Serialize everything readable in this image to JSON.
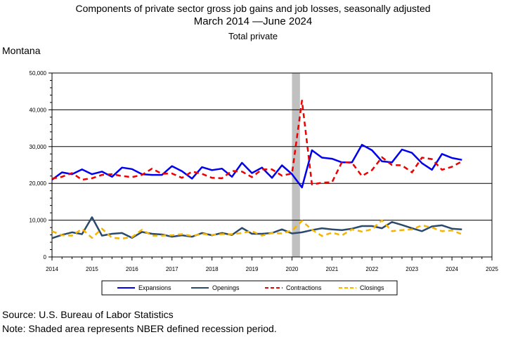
{
  "chart_data": {
    "type": "line",
    "title": "Components of private sector gross job gains and job losses, seasonally adjusted",
    "subtitle_range": {
      "start": "March 2014",
      "separator": "—",
      "end": "June 2024"
    },
    "subtitle2": "Total private",
    "region": "Montana",
    "xlim": [
      2014,
      2025
    ],
    "ylim": [
      0,
      50000
    ],
    "x_ticks": [
      "2014",
      "2015",
      "2016",
      "2017",
      "2018",
      "2019",
      "2020",
      "2021",
      "2022",
      "2023",
      "2024",
      "2025"
    ],
    "y_ticks": [
      "0",
      "10,000",
      "20,000",
      "30,000",
      "40,000",
      "50,000"
    ],
    "recession": {
      "start": 2020.0,
      "end": 2020.2
    },
    "x": [
      2014.0,
      2014.25,
      2014.5,
      2014.75,
      2015.0,
      2015.25,
      2015.5,
      2015.75,
      2016.0,
      2016.25,
      2016.5,
      2016.75,
      2017.0,
      2017.25,
      2017.5,
      2017.75,
      2018.0,
      2018.25,
      2018.5,
      2018.75,
      2019.0,
      2019.25,
      2019.5,
      2019.75,
      2020.0,
      2020.25,
      2020.5,
      2020.75,
      2021.0,
      2021.25,
      2021.5,
      2021.75,
      2022.0,
      2022.25,
      2022.5,
      2022.75,
      2023.0,
      2023.25,
      2023.5,
      2023.75,
      2024.0,
      2024.25
    ],
    "series": [
      {
        "name": "Expansions",
        "color": "#0000ee",
        "dash": "",
        "width": 2.5,
        "values": [
          21000,
          23000,
          22500,
          23800,
          22500,
          23200,
          21800,
          24300,
          23900,
          22500,
          22300,
          22300,
          24700,
          23300,
          21300,
          24400,
          23600,
          24000,
          21800,
          25600,
          22800,
          24300,
          21500,
          24900,
          22500,
          18900,
          29000,
          27000,
          26700,
          25700,
          25700,
          30500,
          29000,
          26000,
          25700,
          29200,
          28300,
          25500,
          23700,
          28000,
          26900,
          26400
        ]
      },
      {
        "name": "Openings",
        "color": "#2b4a6b",
        "dash": "",
        "width": 2.5,
        "values": [
          5100,
          6000,
          6700,
          6200,
          10800,
          5800,
          6300,
          6500,
          5200,
          6800,
          6300,
          6100,
          5500,
          5900,
          5500,
          6500,
          5900,
          6500,
          6000,
          7900,
          6300,
          6300,
          6500,
          7500,
          6400,
          6700,
          7300,
          7800,
          7500,
          7300,
          7700,
          8400,
          8400,
          7800,
          9500,
          8700,
          7800,
          7000,
          8300,
          8600,
          7700,
          7500
        ]
      },
      {
        "name": "Contractions",
        "color": "#ee0000",
        "dash": "7,5",
        "width": 2.5,
        "values": [
          21300,
          21800,
          22800,
          21000,
          21400,
          22300,
          22500,
          22000,
          21700,
          22300,
          24000,
          22600,
          22700,
          21500,
          23200,
          22600,
          21500,
          21400,
          23400,
          23200,
          21700,
          23800,
          23800,
          22100,
          22700,
          42500,
          19700,
          20200,
          20300,
          25800,
          25600,
          22000,
          23600,
          27100,
          25000,
          24900,
          23000,
          27000,
          26600,
          23700,
          24500,
          26000
        ]
      },
      {
        "name": "Closings",
        "color": "#f5b400",
        "dash": "7,5",
        "width": 2.5,
        "values": [
          7000,
          5900,
          5800,
          7600,
          5200,
          7700,
          5200,
          5000,
          5400,
          7400,
          5800,
          5800,
          5900,
          6200,
          5700,
          6300,
          6000,
          6200,
          6200,
          6500,
          7000,
          5800,
          6500,
          6400,
          7200,
          9800,
          7400,
          5700,
          6600,
          5900,
          7500,
          6900,
          7500,
          10000,
          7000,
          7300,
          7500,
          8600,
          8000,
          7000,
          7200,
          6200
        ]
      }
    ],
    "legend": [
      "Expansions",
      "Openings",
      "Contractions",
      "Closings"
    ],
    "legend_position": "bottom"
  },
  "footer": {
    "source": "Source: U.S. Bureau of Labor Statistics",
    "note": "Note: Shaded area represents NBER defined recession period."
  }
}
